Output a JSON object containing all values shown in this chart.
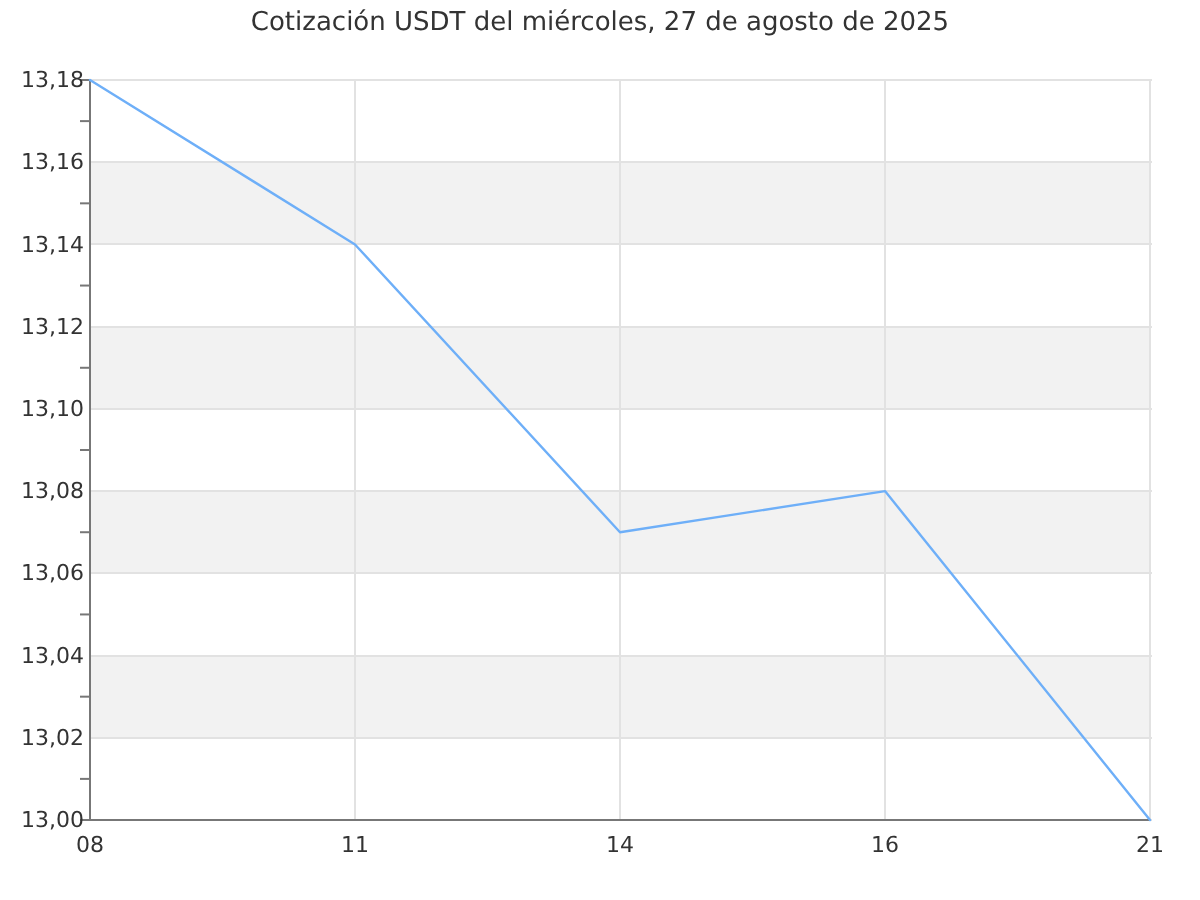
{
  "chart_data": {
    "type": "line",
    "title": "Cotización USDT del miércoles, 27 de agosto de 2025",
    "categories": [
      "08",
      "11",
      "14",
      "16",
      "21"
    ],
    "series": [
      {
        "color": "#6eaff8",
        "values": [
          13.18,
          13.14,
          13.07,
          13.08,
          13.0
        ]
      }
    ],
    "ylim": [
      13.0,
      13.18
    ],
    "yticks": [
      {
        "value": 13.0,
        "label": "13,00"
      },
      {
        "value": 13.01,
        "label": null
      },
      {
        "value": 13.02,
        "label": "13,02"
      },
      {
        "value": 13.03,
        "label": null
      },
      {
        "value": 13.04,
        "label": "13,04"
      },
      {
        "value": 13.05,
        "label": null
      },
      {
        "value": 13.06,
        "label": "13,06"
      },
      {
        "value": 13.07,
        "label": null
      },
      {
        "value": 13.08,
        "label": "13,08"
      },
      {
        "value": 13.09,
        "label": null
      },
      {
        "value": 13.1,
        "label": "13,10"
      },
      {
        "value": 13.11,
        "label": null
      },
      {
        "value": 13.12,
        "label": "13,12"
      },
      {
        "value": 13.13,
        "label": null
      },
      {
        "value": 13.14,
        "label": "13,14"
      },
      {
        "value": 13.15,
        "label": null
      },
      {
        "value": 13.16,
        "label": "13,16"
      },
      {
        "value": 13.17,
        "label": null
      },
      {
        "value": 13.18,
        "label": "13,18"
      }
    ],
    "bands": [
      {
        "axis": "y",
        "from": 13.02,
        "to": 13.04,
        "color": "#f2f2f2"
      },
      {
        "axis": "y",
        "from": 13.06,
        "to": 13.08,
        "color": "#f2f2f2"
      },
      {
        "axis": "y",
        "from": 13.1,
        "to": 13.12,
        "color": "#f2f2f2"
      },
      {
        "axis": "y",
        "from": 13.14,
        "to": 13.16,
        "color": "#f2f2f2"
      }
    ],
    "grid": true,
    "marker": "none",
    "line_style": "solid"
  }
}
